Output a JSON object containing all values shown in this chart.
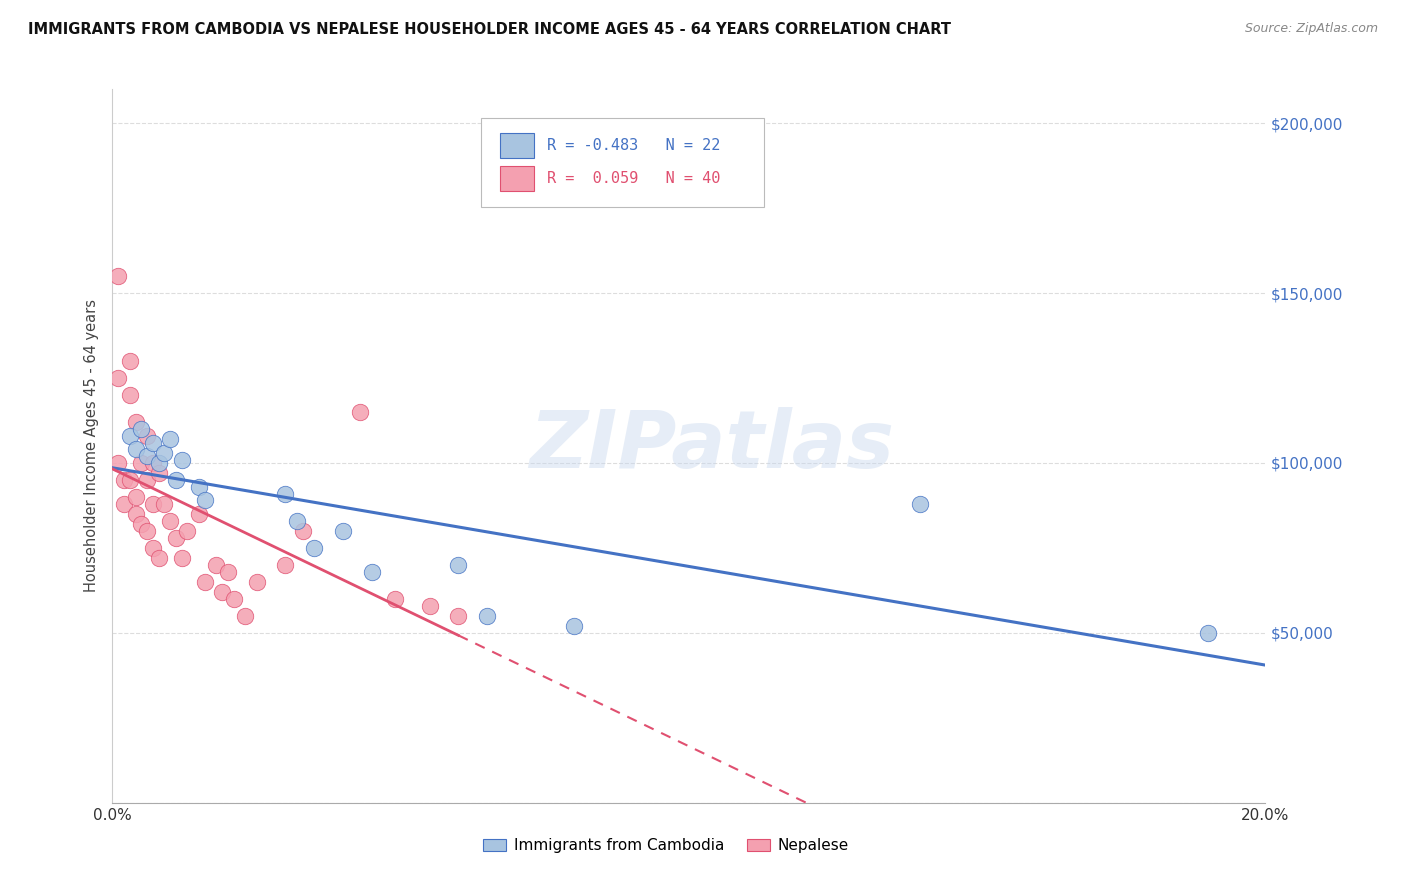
{
  "title": "IMMIGRANTS FROM CAMBODIA VS NEPALESE HOUSEHOLDER INCOME AGES 45 - 64 YEARS CORRELATION CHART",
  "source": "Source: ZipAtlas.com",
  "ylabel": "Householder Income Ages 45 - 64 years",
  "watermark": "ZIPatlas",
  "legend_cambodia": "Immigrants from Cambodia",
  "legend_nepalese": "Nepalese",
  "R_cambodia": -0.483,
  "N_cambodia": 22,
  "R_nepalese": 0.059,
  "N_nepalese": 40,
  "xlim": [
    0.0,
    0.2
  ],
  "ylim": [
    0,
    210000
  ],
  "yticks": [
    0,
    50000,
    100000,
    150000,
    200000
  ],
  "xticks": [
    0.0,
    0.05,
    0.1,
    0.15,
    0.2
  ],
  "color_cambodia": "#a8c4e0",
  "color_nepalese": "#f4a0b0",
  "line_color_cambodia": "#4472c4",
  "line_color_nepalese": "#e05070",
  "background_color": "#ffffff",
  "grid_color": "#dddddd",
  "right_label_color": "#4472c4",
  "cambodia_x": [
    0.003,
    0.004,
    0.005,
    0.006,
    0.007,
    0.008,
    0.009,
    0.01,
    0.011,
    0.012,
    0.015,
    0.016,
    0.03,
    0.032,
    0.035,
    0.04,
    0.045,
    0.06,
    0.065,
    0.08,
    0.14,
    0.19
  ],
  "cambodia_y": [
    108000,
    104000,
    110000,
    102000,
    106000,
    100000,
    103000,
    107000,
    95000,
    101000,
    93000,
    89000,
    91000,
    83000,
    75000,
    80000,
    68000,
    70000,
    55000,
    52000,
    88000,
    50000
  ],
  "nepalese_x": [
    0.001,
    0.001,
    0.002,
    0.002,
    0.003,
    0.003,
    0.003,
    0.004,
    0.004,
    0.004,
    0.005,
    0.005,
    0.006,
    0.006,
    0.006,
    0.007,
    0.007,
    0.007,
    0.008,
    0.008,
    0.009,
    0.01,
    0.011,
    0.012,
    0.013,
    0.015,
    0.016,
    0.018,
    0.019,
    0.02,
    0.021,
    0.023,
    0.025,
    0.03,
    0.033,
    0.043,
    0.049,
    0.055,
    0.06,
    0.001
  ],
  "nepalese_y": [
    155000,
    100000,
    95000,
    88000,
    130000,
    120000,
    95000,
    112000,
    90000,
    85000,
    100000,
    82000,
    108000,
    95000,
    80000,
    100000,
    88000,
    75000,
    97000,
    72000,
    88000,
    83000,
    78000,
    72000,
    80000,
    85000,
    65000,
    70000,
    62000,
    68000,
    60000,
    55000,
    65000,
    70000,
    80000,
    115000,
    60000,
    58000,
    55000,
    125000
  ]
}
